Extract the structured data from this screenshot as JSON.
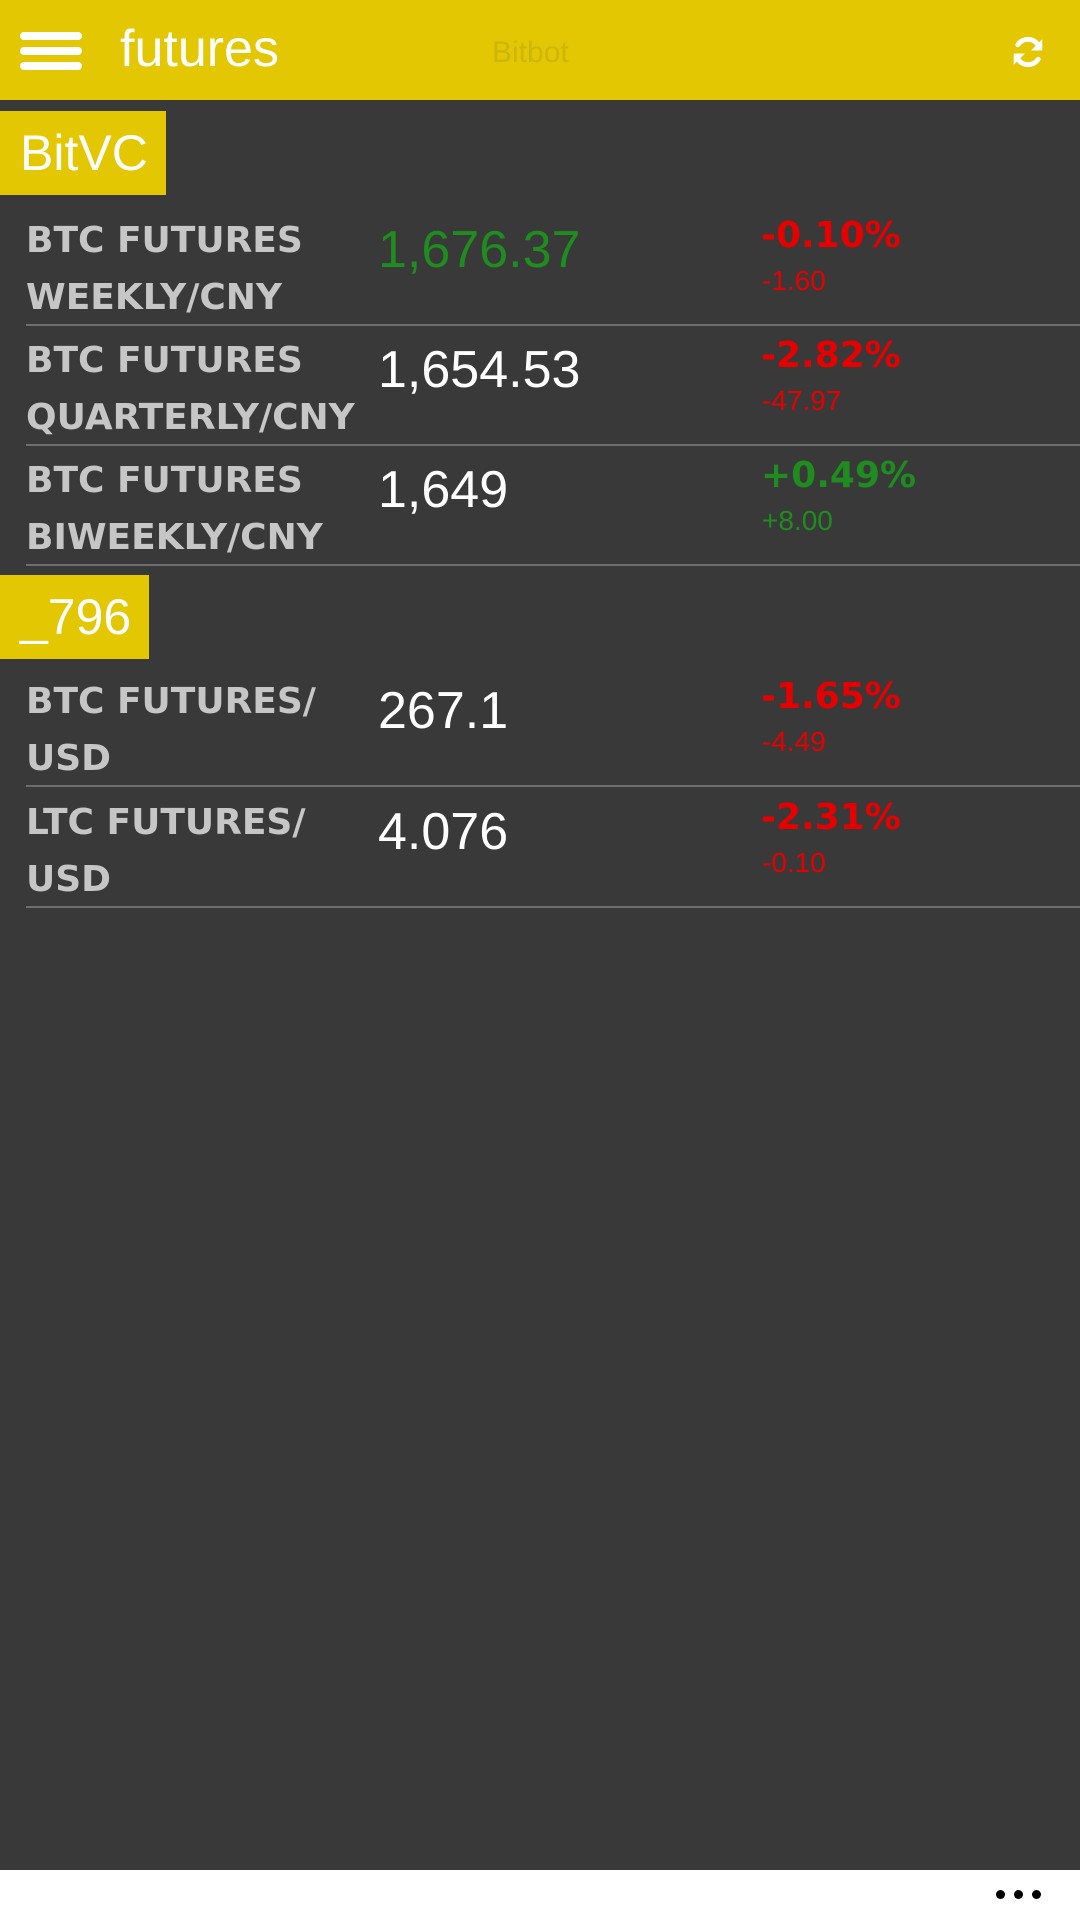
{
  "header": {
    "title": "futures",
    "app_name": "Bitbot",
    "menu_icon": "hamburger-menu-icon",
    "refresh_icon": "refresh-icon"
  },
  "colors": {
    "accent": "#e2c702",
    "background": "#393939",
    "up": "#1e8c1e",
    "down": "#e60000",
    "neutral_price": "#ffffff"
  },
  "groups": [
    {
      "label": "BitVC",
      "rows": [
        {
          "pair_line1": "BTC FUTURES",
          "pair_line2": "WEEKLY/CNY",
          "price": "1,676.37",
          "price_color": "#1e8c1e",
          "change_pct": "-0.10%",
          "change_abs": "-1.60",
          "change_color": "#e60000"
        },
        {
          "pair_line1": "BTC FUTURES",
          "pair_line2": "QUARTERLY/CNY",
          "price": "1,654.53",
          "price_color": "#ffffff",
          "change_pct": "-2.82%",
          "change_abs": "-47.97",
          "change_color": "#e60000"
        },
        {
          "pair_line1": "BTC FUTURES",
          "pair_line2": "BIWEEKLY/CNY",
          "price": "1,649",
          "price_color": "#ffffff",
          "change_pct": "+0.49%",
          "change_abs": "+8.00",
          "change_color": "#1e8c1e"
        }
      ]
    },
    {
      "label": "_796",
      "rows": [
        {
          "pair_line1": "BTC FUTURES/",
          "pair_line2": "USD",
          "price": "267.1",
          "price_color": "#ffffff",
          "change_pct": "-1.65%",
          "change_abs": "-4.49",
          "change_color": "#e60000"
        },
        {
          "pair_line1": "LTC FUTURES/",
          "pair_line2": "USD",
          "price": "4.076",
          "price_color": "#ffffff",
          "change_pct": "-2.31%",
          "change_abs": "-0.10",
          "change_color": "#e60000"
        }
      ]
    }
  ],
  "appbar": {
    "more_icon": "more-ellipsis-icon"
  }
}
